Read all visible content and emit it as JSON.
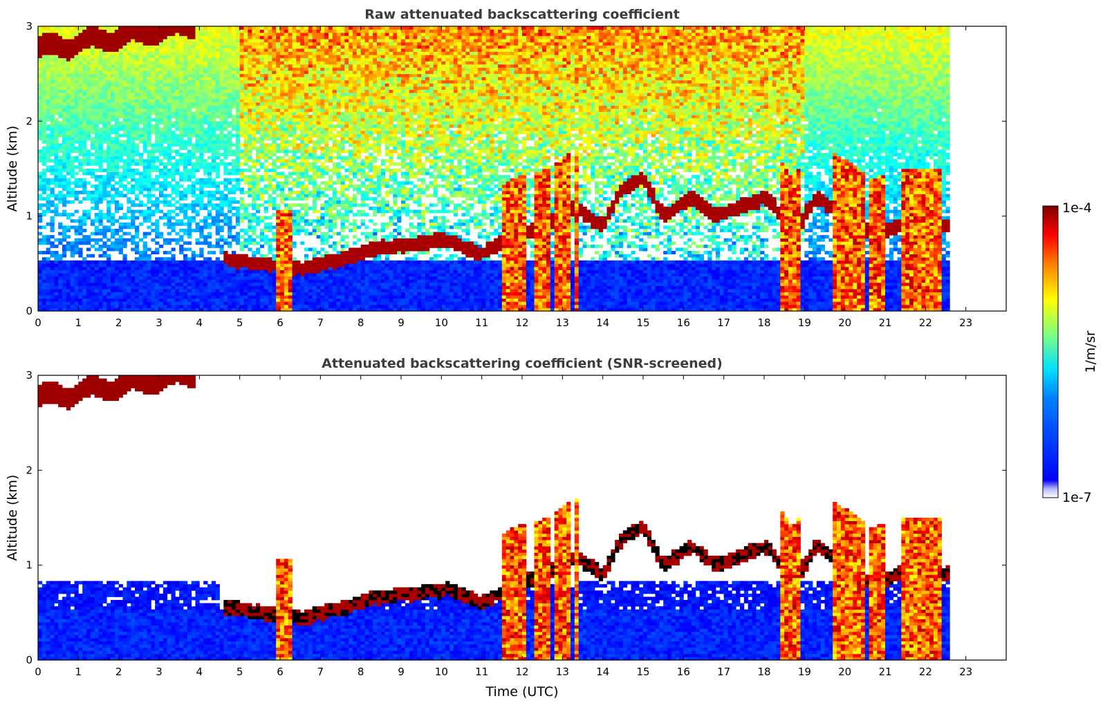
{
  "chart_data": [
    {
      "type": "heatmap",
      "title": "Raw attenuated backscattering coefficient",
      "xlabel": "",
      "ylabel": "Altitude (km)",
      "xlim": [
        0,
        24
      ],
      "ylim": [
        0,
        3
      ],
      "xticks": [
        "0",
        "1",
        "2",
        "3",
        "4",
        "5",
        "6",
        "7",
        "8",
        "9",
        "10",
        "11",
        "12",
        "13",
        "14",
        "15",
        "16",
        "17",
        "18",
        "19",
        "20",
        "21",
        "22",
        "23"
      ],
      "yticks": [
        "0",
        "1",
        "2",
        "3"
      ],
      "data_end_time": 22.65,
      "screened": false
    },
    {
      "type": "heatmap",
      "title": "Attenuated backscattering coefficient (SNR-screened)",
      "xlabel": "Time (UTC)",
      "ylabel": "Altitude (km)",
      "xlim": [
        0,
        24
      ],
      "ylim": [
        0,
        3
      ],
      "xticks": [
        "0",
        "1",
        "2",
        "3",
        "4",
        "5",
        "6",
        "7",
        "8",
        "9",
        "10",
        "11",
        "12",
        "13",
        "14",
        "15",
        "16",
        "17",
        "18",
        "19",
        "20",
        "21",
        "22",
        "23"
      ],
      "yticks": [
        "0",
        "1",
        "2",
        "3"
      ],
      "data_end_time": 22.65,
      "screened": true
    }
  ],
  "colorbar": {
    "max_label": "1e-4",
    "min_label": "1e-7",
    "unit_label": "1/m/sr",
    "colormap": "jet",
    "scale": "log"
  },
  "features": {
    "low_cloud_base_km": [
      [
        4.7,
        0.55
      ],
      [
        5.5,
        0.5
      ],
      [
        6.6,
        0.45
      ],
      [
        7.6,
        0.55
      ],
      [
        8.3,
        0.65
      ],
      [
        9.3,
        0.7
      ],
      [
        10.2,
        0.75
      ],
      [
        11.0,
        0.6
      ],
      [
        11.8,
        0.8
      ],
      [
        12.6,
        0.9
      ],
      [
        13.3,
        1.1
      ],
      [
        14.0,
        0.9
      ],
      [
        14.5,
        1.3
      ],
      [
        15.0,
        1.4
      ],
      [
        15.5,
        1.0
      ],
      [
        16.2,
        1.2
      ],
      [
        16.8,
        1.0
      ],
      [
        17.4,
        1.1
      ],
      [
        18.1,
        1.2
      ],
      [
        18.7,
        0.8
      ],
      [
        19.3,
        1.2
      ],
      [
        20.0,
        1.0
      ],
      [
        20.7,
        0.8
      ],
      [
        21.3,
        0.9
      ]
    ],
    "precipitation_bands": [
      [
        5.95,
        6.3
      ],
      [
        11.5,
        12.1
      ],
      [
        12.3,
        12.7
      ],
      [
        12.8,
        13.2
      ],
      [
        13.3,
        13.45
      ],
      [
        18.4,
        18.9
      ],
      [
        19.7,
        20.5
      ],
      [
        20.6,
        21.0
      ],
      [
        21.4,
        22.4
      ]
    ]
  }
}
